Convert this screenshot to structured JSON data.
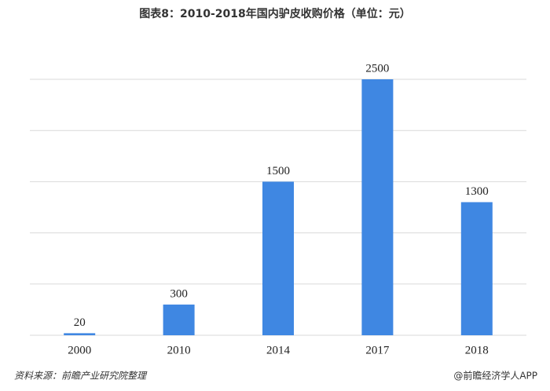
{
  "chart_data": {
    "type": "bar",
    "title": "图表8：2010-2018年国内驴皮收购价格（单位：元）",
    "categories": [
      "2000",
      "2010",
      "2014",
      "2017",
      "2018"
    ],
    "values": [
      20,
      300,
      1500,
      2500,
      1300
    ],
    "color": "#3f87e2",
    "ylim": [
      0,
      2500
    ],
    "yticks": [
      0,
      500,
      1000,
      1500,
      2000,
      2500
    ],
    "grid": true,
    "ytick_labels": false,
    "source": "资料来源：前瞻产业研究院整理",
    "credit": "@前瞻经济学人APP"
  }
}
